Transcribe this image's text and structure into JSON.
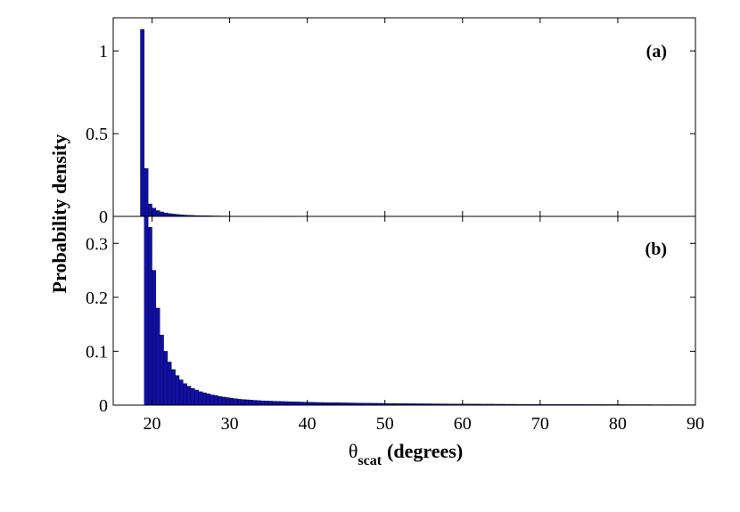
{
  "chart_data": [
    {
      "type": "bar",
      "panel_label": "(a)",
      "ylabel": "Probability density",
      "ylim": [
        0,
        1.2
      ],
      "yticks": [
        0,
        0.5,
        1
      ],
      "ytick_labels": [
        "0",
        "0.5",
        "1"
      ],
      "xlim": [
        15,
        90
      ],
      "bar_color": "#1010a0",
      "bin_start": 18.5,
      "bin_width": 0.5,
      "values": [
        1.13,
        0.29,
        0.075,
        0.05,
        0.035,
        0.027,
        0.021,
        0.017,
        0.014,
        0.012,
        0.01,
        0.008,
        0.007,
        0.006,
        0.005,
        0.0045,
        0.004,
        0.0035,
        0.003,
        0.0027,
        0.0024,
        0.0021,
        0.0019,
        0.0017,
        0.0015,
        0.0013,
        0.0012,
        0.0011,
        0.001,
        0.0009,
        0.0008,
        0.0007,
        0.0006,
        0.0005,
        0.0005,
        0.0004,
        0.0004,
        0.0003,
        0.0003,
        0.0003
      ]
    },
    {
      "type": "bar",
      "panel_label": "(b)",
      "ylim": [
        0,
        0.35
      ],
      "yticks": [
        0,
        0.1,
        0.2,
        0.3
      ],
      "ytick_labels": [
        "0",
        "0.1",
        "0.2",
        "0.3"
      ],
      "xlim": [
        15,
        90
      ],
      "xticks": [
        20,
        30,
        40,
        50,
        60,
        70,
        80,
        90
      ],
      "xtick_labels": [
        "20",
        "30",
        "40",
        "50",
        "60",
        "70",
        "80",
        "90"
      ],
      "xlabel_symbol": "θ",
      "xlabel_subscript": "scat",
      "xlabel_units": "(degrees)",
      "bar_color": "#1010a0",
      "bin_start": 19.0,
      "bin_width": 0.5,
      "values": [
        0.35,
        0.33,
        0.25,
        0.18,
        0.13,
        0.1,
        0.08,
        0.066,
        0.055,
        0.047,
        0.04,
        0.035,
        0.031,
        0.028,
        0.025,
        0.023,
        0.021,
        0.019,
        0.018,
        0.016,
        0.015,
        0.014,
        0.013,
        0.012,
        0.011,
        0.0105,
        0.01,
        0.0095,
        0.009,
        0.0085,
        0.008,
        0.0078,
        0.0075,
        0.0072,
        0.007,
        0.0068,
        0.0066,
        0.0064,
        0.0062,
        0.006,
        0.0058,
        0.0056,
        0.0054,
        0.0052,
        0.005,
        0.0049,
        0.0048,
        0.0047,
        0.0046,
        0.0045,
        0.0044,
        0.0043,
        0.0042,
        0.0041,
        0.004,
        0.0039,
        0.0038,
        0.0037,
        0.0036,
        0.0035,
        0.0034,
        0.0033,
        0.0032,
        0.0031,
        0.003,
        0.0029,
        0.0028,
        0.0028,
        0.0027,
        0.0027,
        0.0026,
        0.0026,
        0.0025,
        0.0025,
        0.0024,
        0.0024,
        0.0023,
        0.0023,
        0.0022,
        0.0022,
        0.0021,
        0.0021,
        0.002,
        0.002,
        0.0019,
        0.0019,
        0.0019,
        0.0018,
        0.0018,
        0.0018,
        0.0017,
        0.0017,
        0.0017,
        0.0016,
        0.0016,
        0.0016,
        0.0015,
        0.0015,
        0.0015,
        0.0015,
        0.0014,
        0.0014,
        0.0014,
        0.0014,
        0.0013,
        0.0013,
        0.0013,
        0.0013,
        0.0012,
        0.0012,
        0.0012,
        0.0012,
        0.0012,
        0.0011,
        0.0011,
        0.0011,
        0.0011,
        0.0011,
        0.001,
        0.001,
        0.001,
        0.001,
        0.001,
        0.001,
        0.0009,
        0.0009,
        0.0009,
        0.0009,
        0.0009,
        0.0009,
        0.0009,
        0.0008,
        0.0008,
        0.0008,
        0.0008,
        0.0008,
        0.0008,
        0.0008,
        0.0008,
        0.0007,
        0.0007,
        0.0007
      ]
    }
  ]
}
